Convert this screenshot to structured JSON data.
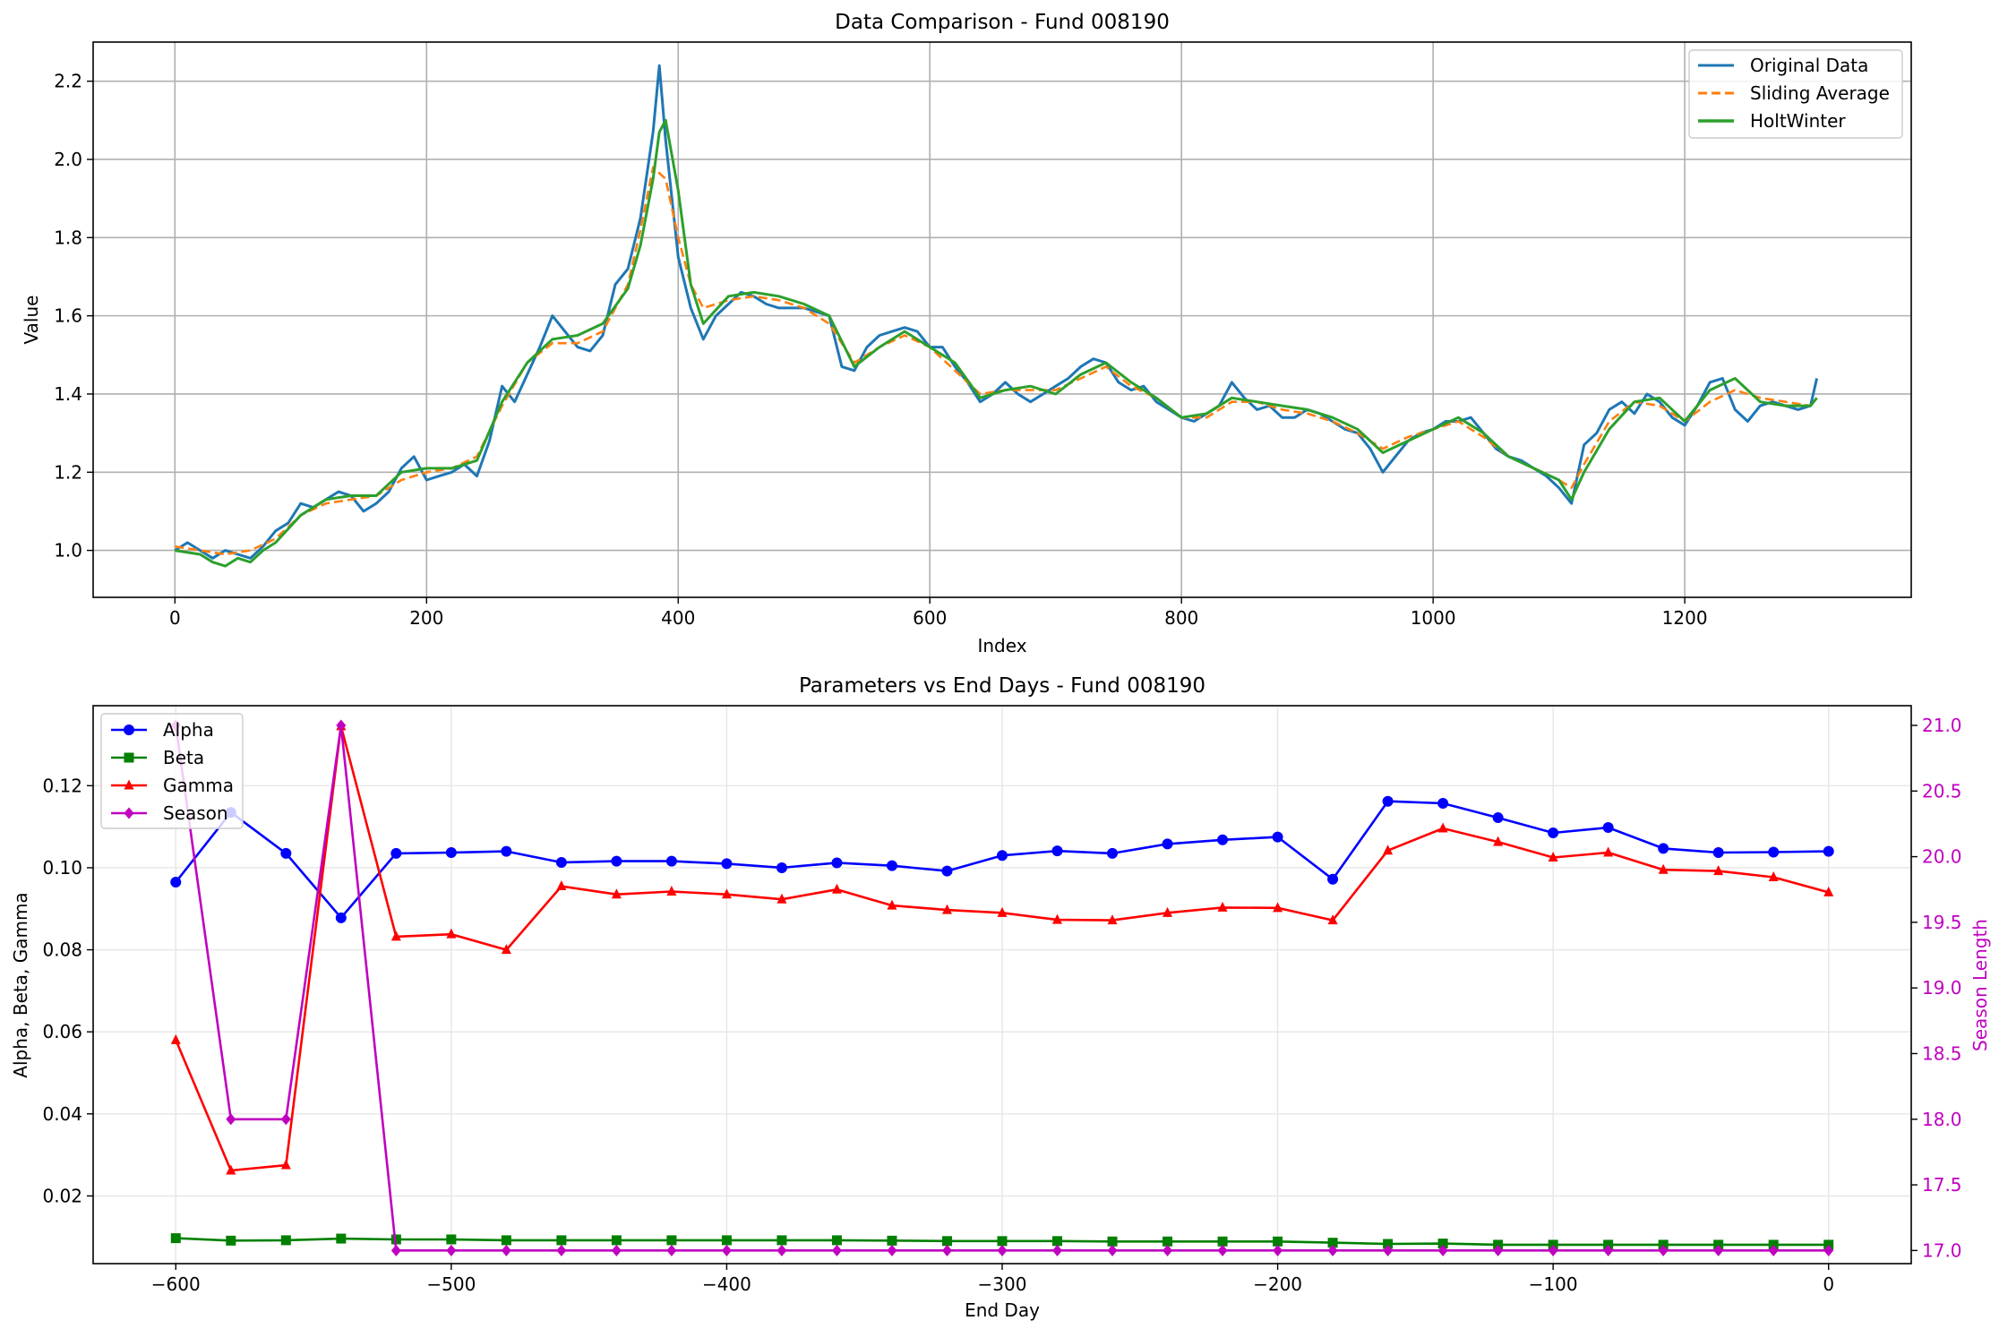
{
  "chart_data": [
    {
      "type": "line",
      "title": "Data Comparison - Fund 008190",
      "xlabel": "Index",
      "ylabel": "Value",
      "xlim": [
        -65,
        1380
      ],
      "ylim": [
        0.88,
        2.3
      ],
      "x_ticks": [
        0,
        200,
        400,
        600,
        800,
        1000,
        1200
      ],
      "y_ticks": [
        1.0,
        1.2,
        1.4,
        1.6,
        1.8,
        2.0,
        2.2
      ],
      "x_tick_labels": [
        "0",
        "200",
        "400",
        "600",
        "800",
        "1000",
        "1200"
      ],
      "y_tick_labels": [
        "1.0",
        "1.2",
        "1.4",
        "1.6",
        "1.8",
        "2.0",
        "2.2"
      ],
      "grid": true,
      "legend_position": "top-right",
      "series": [
        {
          "name": "Original Data",
          "color": "#1f77b4",
          "style": "solid",
          "x": [
            0,
            10,
            20,
            30,
            40,
            50,
            60,
            70,
            80,
            90,
            100,
            110,
            120,
            130,
            140,
            150,
            160,
            170,
            180,
            190,
            200,
            210,
            220,
            230,
            240,
            250,
            260,
            270,
            280,
            290,
            300,
            310,
            320,
            330,
            340,
            350,
            360,
            370,
            380,
            385,
            390,
            400,
            410,
            420,
            430,
            440,
            450,
            460,
            470,
            480,
            490,
            500,
            510,
            520,
            530,
            540,
            550,
            560,
            570,
            580,
            590,
            600,
            610,
            620,
            630,
            640,
            650,
            660,
            670,
            680,
            690,
            700,
            710,
            720,
            730,
            740,
            750,
            760,
            770,
            780,
            790,
            800,
            810,
            820,
            830,
            840,
            850,
            860,
            870,
            880,
            890,
            900,
            910,
            920,
            930,
            940,
            950,
            960,
            970,
            980,
            990,
            1000,
            1010,
            1020,
            1030,
            1040,
            1050,
            1060,
            1070,
            1080,
            1090,
            1100,
            1110,
            1120,
            1130,
            1140,
            1150,
            1160,
            1170,
            1180,
            1190,
            1200,
            1210,
            1220,
            1230,
            1240,
            1250,
            1260,
            1270,
            1280,
            1290,
            1300,
            1305
          ],
          "values": [
            1.0,
            1.02,
            1.0,
            0.98,
            1.0,
            0.99,
            0.98,
            1.01,
            1.05,
            1.07,
            1.12,
            1.11,
            1.13,
            1.15,
            1.14,
            1.1,
            1.12,
            1.15,
            1.21,
            1.24,
            1.18,
            1.19,
            1.2,
            1.22,
            1.19,
            1.28,
            1.42,
            1.38,
            1.45,
            1.52,
            1.6,
            1.56,
            1.52,
            1.51,
            1.55,
            1.68,
            1.72,
            1.85,
            2.07,
            2.24,
            2.05,
            1.75,
            1.62,
            1.54,
            1.6,
            1.63,
            1.66,
            1.65,
            1.63,
            1.62,
            1.62,
            1.62,
            1.61,
            1.6,
            1.47,
            1.46,
            1.52,
            1.55,
            1.56,
            1.57,
            1.56,
            1.52,
            1.52,
            1.47,
            1.43,
            1.38,
            1.4,
            1.43,
            1.4,
            1.38,
            1.4,
            1.42,
            1.44,
            1.47,
            1.49,
            1.48,
            1.43,
            1.41,
            1.42,
            1.38,
            1.36,
            1.34,
            1.33,
            1.35,
            1.37,
            1.43,
            1.39,
            1.36,
            1.37,
            1.34,
            1.34,
            1.36,
            1.35,
            1.33,
            1.31,
            1.3,
            1.26,
            1.2,
            1.24,
            1.28,
            1.3,
            1.31,
            1.33,
            1.33,
            1.34,
            1.3,
            1.26,
            1.24,
            1.23,
            1.21,
            1.19,
            1.16,
            1.12,
            1.27,
            1.3,
            1.36,
            1.38,
            1.35,
            1.4,
            1.38,
            1.34,
            1.32,
            1.37,
            1.43,
            1.44,
            1.36,
            1.33,
            1.37,
            1.38,
            1.37,
            1.36,
            1.37,
            1.44
          ]
        },
        {
          "name": "Sliding Average",
          "color": "#ff7f0e",
          "style": "dashed",
          "x": [
            0,
            20,
            40,
            60,
            80,
            100,
            120,
            140,
            160,
            180,
            200,
            220,
            240,
            260,
            280,
            300,
            320,
            340,
            360,
            370,
            380,
            390,
            400,
            410,
            420,
            440,
            460,
            480,
            500,
            520,
            540,
            560,
            580,
            600,
            620,
            640,
            660,
            680,
            700,
            720,
            740,
            760,
            780,
            800,
            820,
            840,
            860,
            880,
            900,
            920,
            940,
            960,
            980,
            1000,
            1020,
            1040,
            1060,
            1080,
            1100,
            1110,
            1120,
            1140,
            1160,
            1180,
            1200,
            1220,
            1240,
            1260,
            1280,
            1300
          ],
          "values": [
            1.01,
            1.0,
            0.99,
            1.0,
            1.03,
            1.09,
            1.12,
            1.13,
            1.14,
            1.18,
            1.2,
            1.21,
            1.24,
            1.37,
            1.48,
            1.53,
            1.53,
            1.56,
            1.68,
            1.82,
            1.98,
            1.95,
            1.8,
            1.68,
            1.62,
            1.64,
            1.65,
            1.64,
            1.62,
            1.58,
            1.48,
            1.52,
            1.55,
            1.52,
            1.46,
            1.4,
            1.41,
            1.41,
            1.41,
            1.44,
            1.47,
            1.42,
            1.39,
            1.34,
            1.34,
            1.38,
            1.38,
            1.36,
            1.35,
            1.33,
            1.3,
            1.26,
            1.29,
            1.31,
            1.33,
            1.29,
            1.24,
            1.21,
            1.18,
            1.16,
            1.22,
            1.33,
            1.38,
            1.37,
            1.33,
            1.38,
            1.41,
            1.39,
            1.38,
            1.37
          ]
        },
        {
          "name": "HoltWinter",
          "color": "#2ca02c",
          "style": "solid",
          "x": [
            0,
            20,
            30,
            40,
            50,
            60,
            70,
            80,
            100,
            120,
            140,
            160,
            180,
            200,
            220,
            240,
            260,
            280,
            300,
            320,
            340,
            360,
            370,
            380,
            385,
            390,
            400,
            410,
            420,
            440,
            460,
            480,
            500,
            520,
            540,
            560,
            580,
            600,
            620,
            640,
            660,
            680,
            700,
            720,
            740,
            760,
            780,
            800,
            820,
            840,
            860,
            880,
            900,
            920,
            940,
            960,
            980,
            1000,
            1020,
            1040,
            1060,
            1080,
            1100,
            1110,
            1120,
            1140,
            1160,
            1180,
            1200,
            1220,
            1240,
            1260,
            1280,
            1300,
            1305
          ],
          "values": [
            1.0,
            0.99,
            0.97,
            0.96,
            0.98,
            0.97,
            1.0,
            1.02,
            1.09,
            1.13,
            1.14,
            1.14,
            1.2,
            1.21,
            1.21,
            1.23,
            1.38,
            1.48,
            1.54,
            1.55,
            1.58,
            1.67,
            1.78,
            1.95,
            2.07,
            2.1,
            1.92,
            1.68,
            1.58,
            1.65,
            1.66,
            1.65,
            1.63,
            1.6,
            1.47,
            1.52,
            1.56,
            1.52,
            1.48,
            1.39,
            1.41,
            1.42,
            1.4,
            1.45,
            1.48,
            1.43,
            1.39,
            1.34,
            1.35,
            1.39,
            1.38,
            1.37,
            1.36,
            1.34,
            1.31,
            1.25,
            1.28,
            1.31,
            1.34,
            1.3,
            1.24,
            1.21,
            1.18,
            1.13,
            1.2,
            1.31,
            1.38,
            1.39,
            1.33,
            1.41,
            1.44,
            1.38,
            1.37,
            1.37,
            1.39
          ]
        }
      ]
    },
    {
      "type": "line",
      "title": "Parameters vs End Days - Fund 008190",
      "xlabel": "End Day",
      "ylabel": "Alpha, Beta, Gamma",
      "y2label": "Season Length",
      "xlim": [
        -630,
        30
      ],
      "ylim": [
        0.0035,
        0.1395
      ],
      "y2lim": [
        16.9,
        21.15
      ],
      "x_ticks": [
        -600,
        -500,
        -400,
        -300,
        -200,
        -100,
        0
      ],
      "x_tick_labels": [
        "−600",
        "−500",
        "−400",
        "−300",
        "−200",
        "−100",
        "0"
      ],
      "y_ticks": [
        0.02,
        0.04,
        0.06,
        0.08,
        0.1,
        0.12
      ],
      "y_tick_labels": [
        "0.02",
        "0.04",
        "0.06",
        "0.08",
        "0.10",
        "0.12"
      ],
      "y2_ticks": [
        17.0,
        17.5,
        18.0,
        18.5,
        19.0,
        19.5,
        20.0,
        20.5,
        21.0
      ],
      "y2_tick_labels": [
        "17.0",
        "17.5",
        "18.0",
        "18.5",
        "19.0",
        "19.5",
        "20.0",
        "20.5",
        "21.0"
      ],
      "grid": true,
      "legend_position": "top-left",
      "x": [
        -600,
        -580,
        -560,
        -540,
        -520,
        -500,
        -480,
        -460,
        -440,
        -420,
        -400,
        -380,
        -360,
        -340,
        -320,
        -300,
        -280,
        -260,
        -240,
        -220,
        -200,
        -180,
        -160,
        -140,
        -120,
        -100,
        -80,
        -60,
        -40,
        -20,
        0
      ],
      "series": [
        {
          "name": "Alpha",
          "color": "#0000ff",
          "marker": "circle",
          "axis": "left",
          "values": [
            0.0965,
            0.1135,
            0.1035,
            0.0878,
            0.1035,
            0.1037,
            0.104,
            0.1013,
            0.1016,
            0.1016,
            0.101,
            0.1,
            0.1012,
            0.1005,
            0.0992,
            0.103,
            0.1041,
            0.1035,
            0.1058,
            0.1068,
            0.1075,
            0.0972,
            0.1162,
            0.1157,
            0.1122,
            0.1085,
            0.1098,
            0.1047,
            0.1037,
            0.1038,
            0.104
          ]
        },
        {
          "name": "Beta",
          "color": "#008000",
          "marker": "square",
          "axis": "left",
          "values": [
            0.0097,
            0.0091,
            0.0092,
            0.0096,
            0.0094,
            0.0094,
            0.0092,
            0.0092,
            0.0092,
            0.0092,
            0.0092,
            0.0092,
            0.0092,
            0.0091,
            0.009,
            0.009,
            0.009,
            0.0089,
            0.0089,
            0.0089,
            0.0089,
            0.0086,
            0.0083,
            0.0084,
            0.0081,
            0.0081,
            0.0081,
            0.0081,
            0.0081,
            0.0081,
            0.0081
          ]
        },
        {
          "name": "Gamma",
          "color": "#ff0000",
          "marker": "triangle",
          "axis": "left",
          "values": [
            0.058,
            0.0262,
            0.0275,
            0.1345,
            0.0832,
            0.0838,
            0.08,
            0.0955,
            0.0935,
            0.0942,
            0.0935,
            0.0923,
            0.0947,
            0.0908,
            0.0897,
            0.089,
            0.0873,
            0.0872,
            0.089,
            0.0903,
            0.0902,
            0.0872,
            0.1042,
            0.1096,
            0.1063,
            0.1025,
            0.1037,
            0.0995,
            0.0992,
            0.0977,
            0.094
          ]
        },
        {
          "name": "Season",
          "color": "#c000c0",
          "marker": "diamond",
          "axis": "right",
          "values": [
            21,
            18,
            18,
            21,
            17,
            17,
            17,
            17,
            17,
            17,
            17,
            17,
            17,
            17,
            17,
            17,
            17,
            17,
            17,
            17,
            17,
            17,
            17,
            17,
            17,
            17,
            17,
            17,
            17,
            17,
            17
          ]
        }
      ]
    }
  ]
}
